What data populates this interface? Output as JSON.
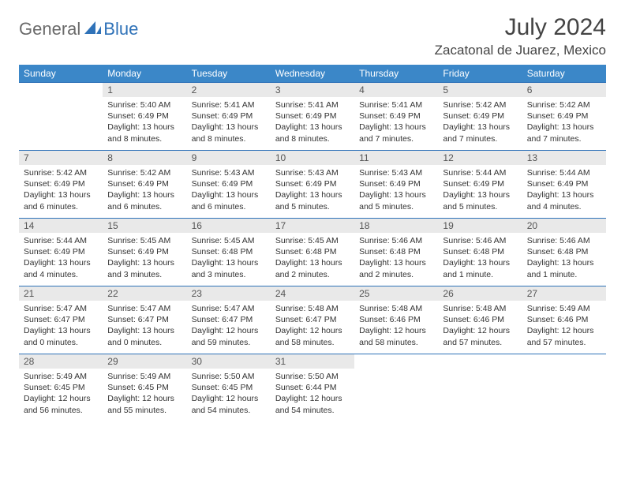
{
  "logo": {
    "general": "General",
    "blue": "Blue"
  },
  "title": {
    "month": "July 2024",
    "location": "Zacatonal de Juarez, Mexico"
  },
  "colors": {
    "header_bg": "#3b87c8",
    "header_text": "#ffffff",
    "daynum_bg": "#e9e9e9",
    "rule": "#2f72b8",
    "text": "#333333",
    "logo_gray": "#6a6a6a",
    "logo_blue": "#2f72b8"
  },
  "weekdays": [
    "Sunday",
    "Monday",
    "Tuesday",
    "Wednesday",
    "Thursday",
    "Friday",
    "Saturday"
  ],
  "weeks": [
    [
      {
        "n": "",
        "sr": "",
        "ss": "",
        "dl": ""
      },
      {
        "n": "1",
        "sr": "Sunrise: 5:40 AM",
        "ss": "Sunset: 6:49 PM",
        "dl": "Daylight: 13 hours and 8 minutes."
      },
      {
        "n": "2",
        "sr": "Sunrise: 5:41 AM",
        "ss": "Sunset: 6:49 PM",
        "dl": "Daylight: 13 hours and 8 minutes."
      },
      {
        "n": "3",
        "sr": "Sunrise: 5:41 AM",
        "ss": "Sunset: 6:49 PM",
        "dl": "Daylight: 13 hours and 8 minutes."
      },
      {
        "n": "4",
        "sr": "Sunrise: 5:41 AM",
        "ss": "Sunset: 6:49 PM",
        "dl": "Daylight: 13 hours and 7 minutes."
      },
      {
        "n": "5",
        "sr": "Sunrise: 5:42 AM",
        "ss": "Sunset: 6:49 PM",
        "dl": "Daylight: 13 hours and 7 minutes."
      },
      {
        "n": "6",
        "sr": "Sunrise: 5:42 AM",
        "ss": "Sunset: 6:49 PM",
        "dl": "Daylight: 13 hours and 7 minutes."
      }
    ],
    [
      {
        "n": "7",
        "sr": "Sunrise: 5:42 AM",
        "ss": "Sunset: 6:49 PM",
        "dl": "Daylight: 13 hours and 6 minutes."
      },
      {
        "n": "8",
        "sr": "Sunrise: 5:42 AM",
        "ss": "Sunset: 6:49 PM",
        "dl": "Daylight: 13 hours and 6 minutes."
      },
      {
        "n": "9",
        "sr": "Sunrise: 5:43 AM",
        "ss": "Sunset: 6:49 PM",
        "dl": "Daylight: 13 hours and 6 minutes."
      },
      {
        "n": "10",
        "sr": "Sunrise: 5:43 AM",
        "ss": "Sunset: 6:49 PM",
        "dl": "Daylight: 13 hours and 5 minutes."
      },
      {
        "n": "11",
        "sr": "Sunrise: 5:43 AM",
        "ss": "Sunset: 6:49 PM",
        "dl": "Daylight: 13 hours and 5 minutes."
      },
      {
        "n": "12",
        "sr": "Sunrise: 5:44 AM",
        "ss": "Sunset: 6:49 PM",
        "dl": "Daylight: 13 hours and 5 minutes."
      },
      {
        "n": "13",
        "sr": "Sunrise: 5:44 AM",
        "ss": "Sunset: 6:49 PM",
        "dl": "Daylight: 13 hours and 4 minutes."
      }
    ],
    [
      {
        "n": "14",
        "sr": "Sunrise: 5:44 AM",
        "ss": "Sunset: 6:49 PM",
        "dl": "Daylight: 13 hours and 4 minutes."
      },
      {
        "n": "15",
        "sr": "Sunrise: 5:45 AM",
        "ss": "Sunset: 6:49 PM",
        "dl": "Daylight: 13 hours and 3 minutes."
      },
      {
        "n": "16",
        "sr": "Sunrise: 5:45 AM",
        "ss": "Sunset: 6:48 PM",
        "dl": "Daylight: 13 hours and 3 minutes."
      },
      {
        "n": "17",
        "sr": "Sunrise: 5:45 AM",
        "ss": "Sunset: 6:48 PM",
        "dl": "Daylight: 13 hours and 2 minutes."
      },
      {
        "n": "18",
        "sr": "Sunrise: 5:46 AM",
        "ss": "Sunset: 6:48 PM",
        "dl": "Daylight: 13 hours and 2 minutes."
      },
      {
        "n": "19",
        "sr": "Sunrise: 5:46 AM",
        "ss": "Sunset: 6:48 PM",
        "dl": "Daylight: 13 hours and 1 minute."
      },
      {
        "n": "20",
        "sr": "Sunrise: 5:46 AM",
        "ss": "Sunset: 6:48 PM",
        "dl": "Daylight: 13 hours and 1 minute."
      }
    ],
    [
      {
        "n": "21",
        "sr": "Sunrise: 5:47 AM",
        "ss": "Sunset: 6:47 PM",
        "dl": "Daylight: 13 hours and 0 minutes."
      },
      {
        "n": "22",
        "sr": "Sunrise: 5:47 AM",
        "ss": "Sunset: 6:47 PM",
        "dl": "Daylight: 13 hours and 0 minutes."
      },
      {
        "n": "23",
        "sr": "Sunrise: 5:47 AM",
        "ss": "Sunset: 6:47 PM",
        "dl": "Daylight: 12 hours and 59 minutes."
      },
      {
        "n": "24",
        "sr": "Sunrise: 5:48 AM",
        "ss": "Sunset: 6:47 PM",
        "dl": "Daylight: 12 hours and 58 minutes."
      },
      {
        "n": "25",
        "sr": "Sunrise: 5:48 AM",
        "ss": "Sunset: 6:46 PM",
        "dl": "Daylight: 12 hours and 58 minutes."
      },
      {
        "n": "26",
        "sr": "Sunrise: 5:48 AM",
        "ss": "Sunset: 6:46 PM",
        "dl": "Daylight: 12 hours and 57 minutes."
      },
      {
        "n": "27",
        "sr": "Sunrise: 5:49 AM",
        "ss": "Sunset: 6:46 PM",
        "dl": "Daylight: 12 hours and 57 minutes."
      }
    ],
    [
      {
        "n": "28",
        "sr": "Sunrise: 5:49 AM",
        "ss": "Sunset: 6:45 PM",
        "dl": "Daylight: 12 hours and 56 minutes."
      },
      {
        "n": "29",
        "sr": "Sunrise: 5:49 AM",
        "ss": "Sunset: 6:45 PM",
        "dl": "Daylight: 12 hours and 55 minutes."
      },
      {
        "n": "30",
        "sr": "Sunrise: 5:50 AM",
        "ss": "Sunset: 6:45 PM",
        "dl": "Daylight: 12 hours and 54 minutes."
      },
      {
        "n": "31",
        "sr": "Sunrise: 5:50 AM",
        "ss": "Sunset: 6:44 PM",
        "dl": "Daylight: 12 hours and 54 minutes."
      },
      {
        "n": "",
        "sr": "",
        "ss": "",
        "dl": ""
      },
      {
        "n": "",
        "sr": "",
        "ss": "",
        "dl": ""
      },
      {
        "n": "",
        "sr": "",
        "ss": "",
        "dl": ""
      }
    ]
  ]
}
